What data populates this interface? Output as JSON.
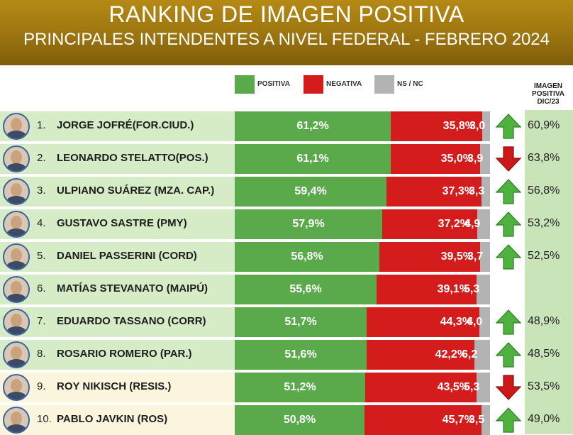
{
  "header": {
    "title": "RANKING DE IMAGEN POSITIVA",
    "subtitle": "PRINCIPALES INTENDENTES A NIVEL FEDERAL - FEBRERO 2024"
  },
  "legend": [
    {
      "label": "POSITIVA",
      "color": "#5aa94a"
    },
    {
      "label": "NEGATIVA",
      "color": "#d41c1c"
    },
    {
      "label": "NS / NC",
      "color": "#b3b3b3"
    }
  ],
  "prev_header": [
    "IMAGEN",
    "POSITIVA",
    "DIC/23"
  ],
  "colors": {
    "positiva": "#5aa94a",
    "negativa": "#d41c1c",
    "nsnc": "#b3b3b3",
    "row_green": "#d6ecc7",
    "row_cream": "#fbf5dd",
    "arrow_up": "#4fb23e",
    "arrow_down": "#cc1818"
  },
  "chart_data": {
    "type": "bar",
    "stacked": true,
    "orientation": "horizontal",
    "title": "RANKING DE IMAGEN POSITIVA",
    "subtitle": "PRINCIPALES INTENDENTES A NIVEL FEDERAL - FEBRERO 2024",
    "categories": [
      "JORGE JOFRÉ(FOR.CIUD.)",
      "LEONARDO STELATTO(POS.)",
      "ULPIANO SUÁREZ (MZA. CAP.)",
      "GUSTAVO SASTRE (PMY)",
      "DANIEL PASSERINI (CORD)",
      "MATÍAS STEVANATO (MAIPÚ)",
      "EDUARDO TASSANO (CORR)",
      "ROSARIO ROMERO (PAR.)",
      "ROY NIKISCH (RESIS.)",
      "PABLO JAVKIN (ROS)"
    ],
    "series": [
      {
        "name": "POSITIVA",
        "values": [
          61.2,
          61.1,
          59.4,
          57.9,
          56.8,
          55.6,
          51.7,
          51.6,
          51.2,
          50.8
        ]
      },
      {
        "name": "NEGATIVA",
        "values": [
          35.8,
          35.0,
          37.3,
          37.2,
          39.5,
          39.1,
          44.3,
          42.2,
          43.5,
          45.7
        ]
      },
      {
        "name": "NS / NC",
        "values": [
          3.0,
          3.9,
          3.3,
          4.9,
          3.7,
          5.3,
          4.0,
          6.2,
          5.3,
          3.5
        ]
      }
    ],
    "rows": [
      {
        "rank": "1.",
        "name": "JORGE JOFRÉ(FOR.CIUD.)",
        "pos": "61,2%",
        "neg": "35,8%",
        "ns": "3,0",
        "trend": "up",
        "prev": "60,9%",
        "bg": "green"
      },
      {
        "rank": "2.",
        "name": "LEONARDO STELATTO(POS.)",
        "pos": "61,1%",
        "neg": "35,0%",
        "ns": "3,9",
        "trend": "down",
        "prev": "63,8%",
        "bg": "green"
      },
      {
        "rank": "3.",
        "name": "ULPIANO SUÁREZ (MZA. CAP.)",
        "pos": "59,4%",
        "neg": "37,3%",
        "ns": "3,3",
        "trend": "up",
        "prev": "56,8%",
        "bg": "green"
      },
      {
        "rank": "4.",
        "name": "GUSTAVO SASTRE (PMY)",
        "pos": "57,9%",
        "neg": "37,2%",
        "ns": "4,9",
        "trend": "up",
        "prev": "53,2%",
        "bg": "green"
      },
      {
        "rank": "5.",
        "name": "DANIEL PASSERINI (CORD)",
        "pos": "56,8%",
        "neg": "39,5%",
        "ns": "3,7",
        "trend": "up",
        "prev": "52,5%",
        "bg": "green"
      },
      {
        "rank": "6.",
        "name": "MATÍAS STEVANATO (MAIPÚ)",
        "pos": "55,6%",
        "neg": "39,1%",
        "ns": "5,3",
        "trend": "",
        "prev": "",
        "bg": "green"
      },
      {
        "rank": "7.",
        "name": "EDUARDO TASSANO (CORR)",
        "pos": "51,7%",
        "neg": "44,3%",
        "ns": "4,0",
        "trend": "up",
        "prev": "48,9%",
        "bg": "green"
      },
      {
        "rank": "8.",
        "name": "ROSARIO ROMERO (PAR.)",
        "pos": "51,6%",
        "neg": "42,2%",
        "ns": "6,2",
        "trend": "up",
        "prev": "48,5%",
        "bg": "green"
      },
      {
        "rank": "9.",
        "name": "ROY NIKISCH (RESIS.)",
        "pos": "51,2%",
        "neg": "43,5%",
        "ns": "5,3",
        "trend": "down",
        "prev": "53,5%",
        "bg": "cream"
      },
      {
        "rank": "10.",
        "name": "PABLO JAVKIN (ROS)",
        "pos": "50,8%",
        "neg": "45,7%",
        "ns": "3,5",
        "trend": "up",
        "prev": "49,0%",
        "bg": "cream"
      }
    ]
  }
}
